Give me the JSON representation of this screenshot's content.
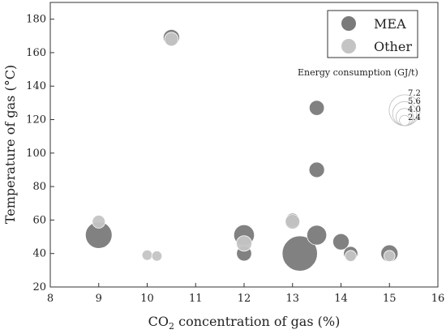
{
  "chart_data": {
    "type": "scatter",
    "xlabel_prefix": "CO",
    "xlabel_sub": "2",
    "xlabel_suffix": " concentration of gas (%)",
    "ylabel": "Temperature of gas (°C)",
    "xlim": [
      8,
      16
    ],
    "ylim": [
      20,
      190
    ],
    "xticks": [
      8,
      9,
      10,
      11,
      12,
      13,
      14,
      15,
      16
    ],
    "yticks": [
      20,
      40,
      60,
      80,
      100,
      120,
      140,
      160,
      180
    ],
    "grid": false,
    "legend_position": "top-right",
    "series": [
      {
        "name": "MEA",
        "color": "#7a7a7a",
        "points": [
          {
            "x": 10.5,
            "y": 169,
            "e": 3.8
          },
          {
            "x": 13.5,
            "y": 127,
            "e": 3.5
          },
          {
            "x": 13.5,
            "y": 90,
            "e": 3.6
          },
          {
            "x": 9.0,
            "y": 51,
            "e": 6.2
          },
          {
            "x": 12.0,
            "y": 51,
            "e": 4.8
          },
          {
            "x": 12.0,
            "y": 40,
            "e": 3.5
          },
          {
            "x": 13.0,
            "y": 60,
            "e": 3.2
          },
          {
            "x": 13.15,
            "y": 40,
            "e": 8.2
          },
          {
            "x": 13.5,
            "y": 51,
            "e": 4.6
          },
          {
            "x": 14.0,
            "y": 47,
            "e": 3.8
          },
          {
            "x": 14.2,
            "y": 40,
            "e": 3.3
          },
          {
            "x": 15.0,
            "y": 40,
            "e": 4.0
          }
        ]
      },
      {
        "name": "Other",
        "color": "#c4c4c4",
        "points": [
          {
            "x": 10.5,
            "y": 168,
            "e": 3.2
          },
          {
            "x": 9.0,
            "y": 59,
            "e": 3.0
          },
          {
            "x": 10.0,
            "y": 39,
            "e": 2.4
          },
          {
            "x": 10.2,
            "y": 38.5,
            "e": 2.4
          },
          {
            "x": 12.0,
            "y": 46,
            "e": 3.6
          },
          {
            "x": 13.0,
            "y": 59,
            "e": 3.4
          },
          {
            "x": 14.2,
            "y": 38.5,
            "e": 2.6
          },
          {
            "x": 15.0,
            "y": 38.5,
            "e": 2.6
          }
        ]
      }
    ],
    "size_legend": {
      "title": "Energy consumption (GJ/t)",
      "values": [
        "7.2",
        "5.6",
        "4.0",
        "2.4"
      ]
    }
  }
}
